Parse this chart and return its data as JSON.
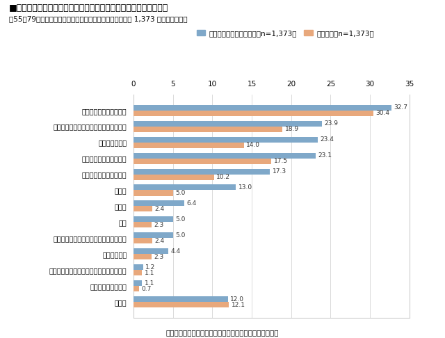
{
  "title": "■住宅リフォーム、住み替え、建て替えにあたって参考にした情報",
  "subtitle": "（55～79歳男女、リフォーム／住み替え／建て替え経験者 1,373 名、複数回答）",
  "footnote": "（「情報を収集している段階」の回答割合で降順ソート）",
  "legend1": "情報を収集している段階（n=1,373）",
  "legend2": "決定段階（n=1,373）",
  "categories": [
    "地元の工務店からの情報",
    "住宅展示場、設備展示場、ショールーム",
    "インターネット",
    "知人、経験者からの情報",
    "メーカーのホームページ",
    "チラシ",
    "テレビ",
    "新聞",
    "地域のフリーペーパー、広報誌、回覧板",
    "雑誌・専門誌",
    "ケアマネージャー、病院関係者からの情報",
    "金融機関からの情報",
    "その他"
  ],
  "values_blue": [
    32.7,
    23.9,
    23.4,
    23.1,
    17.3,
    13.0,
    6.4,
    5.0,
    5.0,
    4.4,
    1.2,
    1.1,
    12.0
  ],
  "values_orange": [
    30.4,
    18.9,
    14.0,
    17.5,
    10.2,
    5.0,
    2.4,
    2.3,
    2.4,
    2.3,
    1.1,
    0.7,
    12.1
  ],
  "color_blue": "#7fa8c9",
  "color_orange": "#e8a87c",
  "xlim": [
    0,
    35.0
  ],
  "xticks": [
    0.0,
    5.0,
    10.0,
    15.0,
    20.0,
    25.0,
    30.0,
    35.0
  ],
  "background_color": "#ffffff",
  "bar_height": 0.35,
  "figsize": [
    6.4,
    4.86
  ],
  "dpi": 100
}
